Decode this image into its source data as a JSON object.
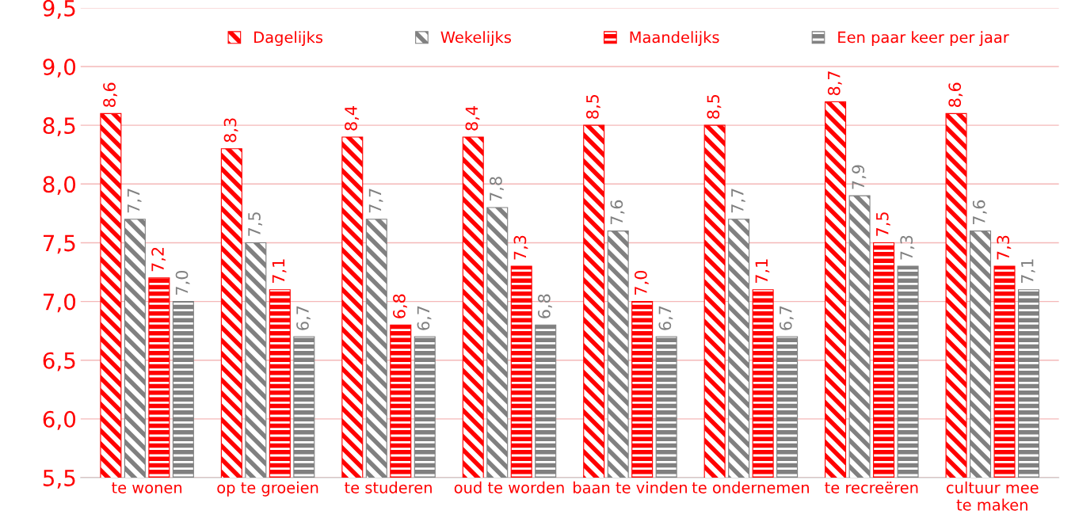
{
  "chart_data": {
    "type": "bar",
    "categories": [
      "te wonen",
      "op te groeien",
      "te studeren",
      "oud te worden",
      "baan te vinden",
      "te ondernemen",
      "te recreëren",
      "cultuur mee\nte maken"
    ],
    "series": [
      {
        "name": "Dagelijks",
        "color": "#ff0000",
        "values": [
          8.6,
          8.3,
          8.4,
          8.4,
          8.5,
          8.5,
          8.7,
          8.6
        ],
        "value_labels": [
          "8,6",
          "8,3",
          "8,4",
          "8,4",
          "8,5",
          "8,5",
          "8,7",
          "8,6"
        ]
      },
      {
        "name": "Wekelijks",
        "color": "#808080",
        "values": [
          7.7,
          7.5,
          7.7,
          7.8,
          7.6,
          7.7,
          7.9,
          7.6
        ],
        "value_labels": [
          "7,7",
          "7,5",
          "7,7",
          "7,8",
          "7,6",
          "7,7",
          "7,9",
          "7,6"
        ]
      },
      {
        "name": "Maandelijks",
        "color": "#ff0000",
        "values": [
          7.2,
          7.1,
          6.8,
          7.3,
          7.0,
          7.1,
          7.5,
          7.3
        ],
        "value_labels": [
          "7,2",
          "7,1",
          "6,8",
          "7,3",
          "7,0",
          "7,1",
          "7,5",
          "7,3"
        ]
      },
      {
        "name": "Een paar keer per jaar",
        "color": "#808080",
        "values": [
          7.0,
          6.7,
          6.7,
          6.8,
          6.7,
          6.7,
          7.3,
          7.1
        ],
        "value_labels": [
          "7,0",
          "6,7",
          "6,7",
          "6,8",
          "6,7",
          "6,7",
          "7,3",
          "7,1"
        ]
      }
    ],
    "ylim": [
      5.5,
      9.5
    ],
    "yticks": [
      {
        "value": 5.5,
        "label": "5,5"
      },
      {
        "value": 6.0,
        "label": "6,0"
      },
      {
        "value": 6.5,
        "label": "6,5"
      },
      {
        "value": 7.0,
        "label": "7,0"
      },
      {
        "value": 7.5,
        "label": "7,5"
      },
      {
        "value": 8.0,
        "label": "8,0"
      },
      {
        "value": 8.5,
        "label": "8,5"
      },
      {
        "value": 9.0,
        "label": "9,0"
      },
      {
        "value": 9.5,
        "label": "9,5"
      }
    ],
    "grid": "y",
    "legend": "top"
  }
}
